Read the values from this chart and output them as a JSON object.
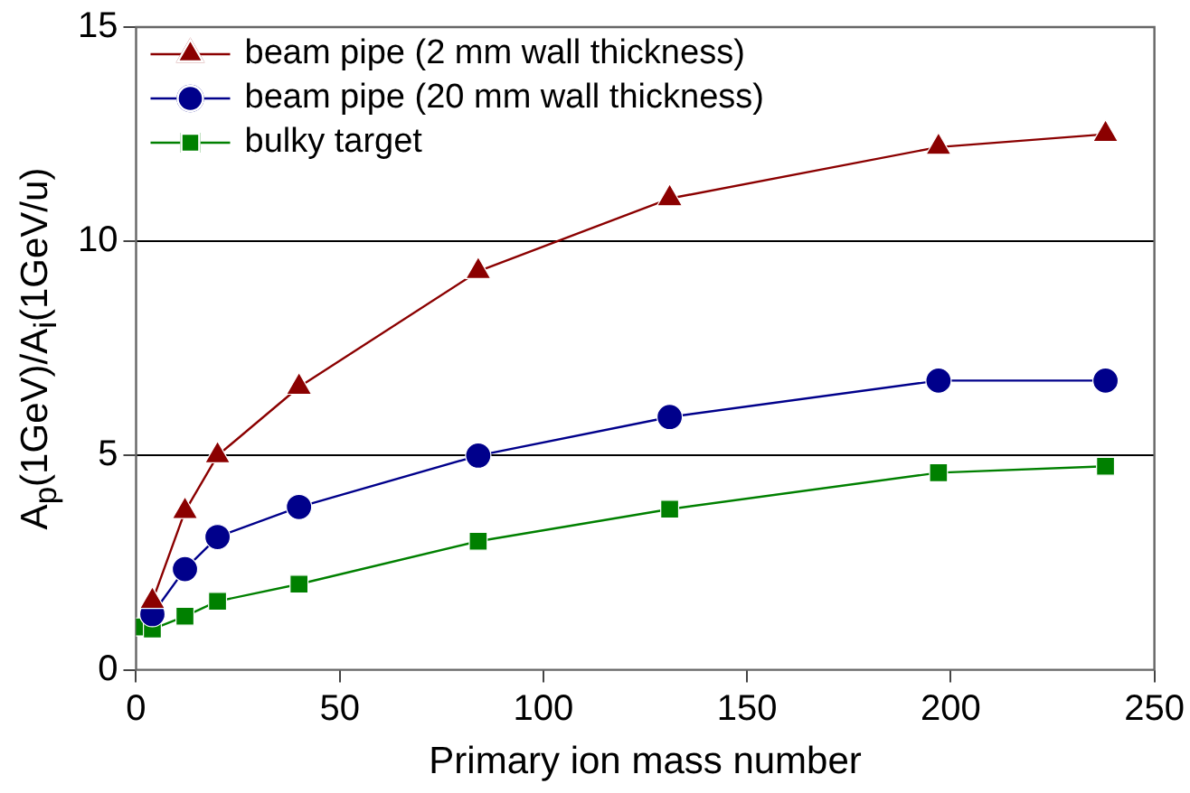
{
  "chart_data": {
    "type": "line",
    "xlabel": "Primary ion mass number",
    "ylabel": "A$_{p}$(1GeV)/A$_{i}$(1GeV/u)",
    "xlim": [
      0,
      250
    ],
    "xticks": [
      0,
      50,
      100,
      150,
      200,
      250
    ],
    "ylim": [
      0,
      15
    ],
    "yticks": [
      0,
      5,
      10,
      15
    ],
    "grid": "y",
    "legend": "top left",
    "line_style": "solid",
    "series": [
      {
        "name": "beam pipe (2 mm wall thickness)",
        "color": "#8b0000",
        "marker": "triangle",
        "x": [
          4,
          12,
          20,
          40,
          84,
          131,
          197,
          238
        ],
        "values": [
          1.6,
          3.7,
          5.0,
          6.6,
          9.3,
          11.0,
          12.2,
          12.5
        ]
      },
      {
        "name": "beam pipe (20 mm wall thickness)",
        "color": "#00008b",
        "marker": "circle",
        "x": [
          4,
          12,
          20,
          40,
          84,
          131,
          197,
          238
        ],
        "values": [
          1.3,
          2.35,
          3.1,
          3.8,
          5.0,
          5.9,
          6.75,
          6.75
        ]
      },
      {
        "name": "bulky target",
        "color": "#008000",
        "marker": "square",
        "x": [
          1,
          4,
          12,
          20,
          40,
          84,
          131,
          197,
          238
        ],
        "values": [
          1.0,
          0.95,
          1.25,
          1.6,
          2.0,
          3.0,
          3.75,
          4.6,
          4.75
        ]
      }
    ]
  }
}
